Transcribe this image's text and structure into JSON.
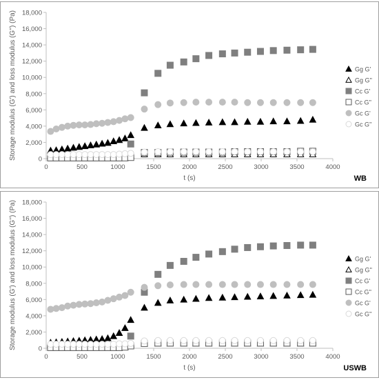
{
  "chart_data": [
    {
      "type": "scatter",
      "panel_label": "WB",
      "xlabel": "t (s)",
      "ylabel": "Storage modulus (G') and loss modulus (G'') (Pa)",
      "xlim": [
        0,
        4000
      ],
      "ylim": [
        0,
        18000
      ],
      "xticks": [
        "0",
        "500",
        "1000",
        "1500",
        "2000",
        "2500",
        "3000",
        "3500",
        "4000"
      ],
      "yticks": [
        "0",
        "2,000",
        "4,000",
        "6,000",
        "8,000",
        "10,000",
        "12,000",
        "14,000",
        "16,000",
        "18,000"
      ],
      "grid": false,
      "legend_position": "right",
      "series": [
        {
          "name": "Gg G'",
          "marker": "triangle",
          "color": "#000000",
          "filled": true,
          "x": [
            62,
            140,
            220,
            300,
            380,
            460,
            540,
            620,
            700,
            780,
            860,
            940,
            1020,
            1100,
            1180,
            1370,
            1560,
            1730,
            1920,
            2090,
            2270,
            2460,
            2630,
            2810,
            2990,
            3170,
            3360,
            3550,
            3720
          ],
          "y": [
            1000,
            1050,
            1150,
            1250,
            1350,
            1450,
            1550,
            1650,
            1750,
            1850,
            1950,
            2150,
            2300,
            2500,
            2900,
            3800,
            4100,
            4250,
            4350,
            4400,
            4450,
            4500,
            4500,
            4550,
            4550,
            4600,
            4600,
            4650,
            4800
          ]
        },
        {
          "name": "Gg G''",
          "marker": "triangle",
          "color": "#000000",
          "filled": false,
          "x": [
            62,
            140,
            220,
            300,
            380,
            460,
            540,
            620,
            700,
            780,
            860,
            940,
            1020,
            1100,
            1180,
            1370,
            1560,
            1730,
            1920,
            2090,
            2270,
            2460,
            2630,
            2810,
            2990,
            3170,
            3360,
            3550,
            3720
          ],
          "y": [
            350,
            350,
            350,
            350,
            350,
            350,
            350,
            350,
            350,
            350,
            350,
            350,
            350,
            350,
            400,
            550,
            550,
            550,
            550,
            550,
            550,
            550,
            550,
            550,
            550,
            550,
            550,
            550,
            550
          ]
        },
        {
          "name": "Cc G'",
          "marker": "square",
          "color": "#7f7f7f",
          "filled": true,
          "x": [
            62,
            140,
            220,
            300,
            380,
            460,
            540,
            620,
            700,
            780,
            860,
            940,
            1020,
            1100,
            1180,
            1370,
            1560,
            1730,
            1920,
            2090,
            2270,
            2460,
            2630,
            2810,
            2990,
            3170,
            3360,
            3550,
            3720
          ],
          "y": [
            100,
            100,
            100,
            100,
            100,
            100,
            100,
            100,
            100,
            100,
            100,
            100,
            100,
            150,
            1800,
            8100,
            10500,
            11500,
            11900,
            12300,
            12700,
            12900,
            13000,
            13100,
            13200,
            13300,
            13350,
            13400,
            13450
          ]
        },
        {
          "name": "Cc G''",
          "marker": "square",
          "color": "#595959",
          "filled": false,
          "x": [
            62,
            140,
            220,
            300,
            380,
            460,
            540,
            620,
            700,
            780,
            860,
            940,
            1020,
            1100,
            1180,
            1370,
            1560,
            1730,
            1920,
            2090,
            2270,
            2460,
            2630,
            2810,
            2990,
            3170,
            3360,
            3550,
            3720
          ],
          "y": [
            100,
            100,
            100,
            100,
            100,
            100,
            100,
            100,
            100,
            100,
            100,
            100,
            100,
            100,
            150,
            750,
            750,
            800,
            800,
            800,
            800,
            800,
            850,
            850,
            850,
            850,
            850,
            900,
            900
          ]
        },
        {
          "name": "Gc G'",
          "marker": "circle",
          "color": "#bfbfbf",
          "filled": true,
          "x": [
            62,
            140,
            220,
            300,
            380,
            460,
            540,
            620,
            700,
            780,
            860,
            940,
            1020,
            1100,
            1180,
            1370,
            1560,
            1730,
            1920,
            2090,
            2270,
            2460,
            2630,
            2810,
            2990,
            3170,
            3360,
            3550,
            3720
          ],
          "y": [
            3350,
            3650,
            3850,
            4000,
            4100,
            4150,
            4150,
            4200,
            4300,
            4350,
            4450,
            4550,
            4700,
            4900,
            5050,
            6100,
            6650,
            6850,
            6900,
            6950,
            6950,
            6950,
            6950,
            6900,
            6900,
            6900,
            6900,
            6900,
            6900
          ]
        },
        {
          "name": "Gc G''",
          "marker": "circle",
          "color": "#d9d9d9",
          "filled": false,
          "x": [
            62,
            140,
            220,
            300,
            380,
            460,
            540,
            620,
            700,
            780,
            860,
            940,
            1020,
            1100,
            1180,
            1370,
            1560,
            1730,
            1920,
            2090,
            2270,
            2460,
            2630,
            2810,
            2990,
            3170,
            3360,
            3550,
            3720
          ],
          "y": [
            500,
            500,
            500,
            500,
            500,
            500,
            500,
            500,
            500,
            500,
            500,
            500,
            550,
            600,
            650,
            800,
            850,
            850,
            850,
            850,
            850,
            850,
            850,
            850,
            850,
            850,
            850,
            850,
            850
          ]
        }
      ]
    },
    {
      "type": "scatter",
      "panel_label": "USWB",
      "xlabel": "t (s)",
      "ylabel": "Storage modulus (G') and loss modulus (G'') (Pa)",
      "xlim": [
        0,
        4000
      ],
      "ylim": [
        0,
        18000
      ],
      "xticks": [
        "0",
        "500",
        "1000",
        "1500",
        "2000",
        "2500",
        "3000",
        "3500",
        "4000"
      ],
      "yticks": [
        "0",
        "2,000",
        "4,000",
        "6,000",
        "8,000",
        "10,000",
        "12,000",
        "14,000",
        "16,000",
        "18,000"
      ],
      "grid": false,
      "legend_position": "right",
      "series": [
        {
          "name": "Gg G'",
          "marker": "triangle",
          "color": "#000000",
          "filled": true,
          "x": [
            62,
            140,
            220,
            300,
            380,
            460,
            540,
            620,
            700,
            780,
            860,
            940,
            1020,
            1100,
            1180,
            1370,
            1560,
            1730,
            1920,
            2090,
            2270,
            2460,
            2630,
            2810,
            2990,
            3170,
            3360,
            3550,
            3720
          ],
          "y": [
            700,
            750,
            800,
            850,
            900,
            950,
            1000,
            1050,
            1100,
            1150,
            1250,
            1500,
            1900,
            2500,
            3500,
            5000,
            5600,
            5900,
            6000,
            6100,
            6200,
            6250,
            6300,
            6350,
            6400,
            6450,
            6500,
            6550,
            6600
          ]
        },
        {
          "name": "Gg G''",
          "marker": "triangle",
          "color": "#000000",
          "filled": false,
          "x": [
            62,
            140,
            220,
            300,
            380,
            460,
            540,
            620,
            700,
            780,
            860,
            940,
            1020,
            1100,
            1180,
            1370,
            1560,
            1730,
            1920,
            2090,
            2270,
            2460,
            2630,
            2810,
            2990,
            3170,
            3360,
            3550,
            3720
          ],
          "y": [
            450,
            450,
            450,
            450,
            450,
            450,
            450,
            450,
            450,
            450,
            450,
            450,
            450,
            450,
            500,
            600,
            600,
            600,
            600,
            600,
            600,
            600,
            600,
            600,
            600,
            600,
            600,
            600,
            600
          ]
        },
        {
          "name": "Cc G'",
          "marker": "square",
          "color": "#7f7f7f",
          "filled": true,
          "x": [
            62,
            140,
            220,
            300,
            380,
            460,
            540,
            620,
            700,
            780,
            860,
            940,
            1020,
            1100,
            1180,
            1370,
            1560,
            1730,
            1920,
            2090,
            2270,
            2460,
            2630,
            2810,
            2990,
            3170,
            3360,
            3550,
            3720
          ],
          "y": [
            100,
            100,
            100,
            100,
            100,
            100,
            100,
            100,
            100,
            100,
            100,
            100,
            100,
            200,
            1500,
            6900,
            9100,
            10200,
            10700,
            11200,
            11600,
            11900,
            12200,
            12400,
            12500,
            12600,
            12650,
            12700,
            12700
          ]
        },
        {
          "name": "Cc G''",
          "marker": "square",
          "color": "#595959",
          "filled": false,
          "x": [
            62,
            140,
            220,
            300,
            380,
            460,
            540,
            620,
            700,
            780,
            860,
            940,
            1020,
            1100,
            1180,
            1370,
            1560,
            1730,
            1920,
            2090,
            2270,
            2460,
            2630,
            2810,
            2990,
            3170,
            3360,
            3550,
            3720
          ],
          "y": [
            100,
            100,
            100,
            100,
            100,
            100,
            100,
            100,
            100,
            100,
            100,
            100,
            100,
            150,
            300,
            600,
            650,
            650,
            650,
            650,
            650,
            650,
            650,
            650,
            650,
            650,
            650,
            650,
            650
          ]
        },
        {
          "name": "Gc G'",
          "marker": "circle",
          "color": "#bfbfbf",
          "filled": true,
          "x": [
            62,
            140,
            220,
            300,
            380,
            460,
            540,
            620,
            700,
            780,
            860,
            940,
            1020,
            1100,
            1180,
            1370,
            1560,
            1730,
            1920,
            2090,
            2270,
            2460,
            2630,
            2810,
            2990,
            3170,
            3360,
            3550,
            3720
          ],
          "y": [
            4800,
            4900,
            5000,
            5200,
            5300,
            5400,
            5450,
            5500,
            5600,
            5700,
            5900,
            6100,
            6300,
            6500,
            6900,
            7500,
            7700,
            7800,
            7850,
            7850,
            7850,
            7850,
            7850,
            7850,
            7850,
            7850,
            7850,
            7850,
            7850
          ]
        },
        {
          "name": "Gc G''",
          "marker": "circle",
          "color": "#d9d9d9",
          "filled": false,
          "x": [
            62,
            140,
            220,
            300,
            380,
            460,
            540,
            620,
            700,
            780,
            860,
            940,
            1020,
            1100,
            1180,
            1370,
            1560,
            1730,
            1920,
            2090,
            2270,
            2460,
            2630,
            2810,
            2990,
            3170,
            3360,
            3550,
            3720
          ],
          "y": [
            500,
            500,
            500,
            500,
            500,
            500,
            500,
            500,
            500,
            500,
            500,
            500,
            550,
            550,
            600,
            900,
            950,
            950,
            950,
            950,
            950,
            950,
            950,
            950,
            950,
            950,
            950,
            950,
            950
          ]
        }
      ]
    }
  ]
}
